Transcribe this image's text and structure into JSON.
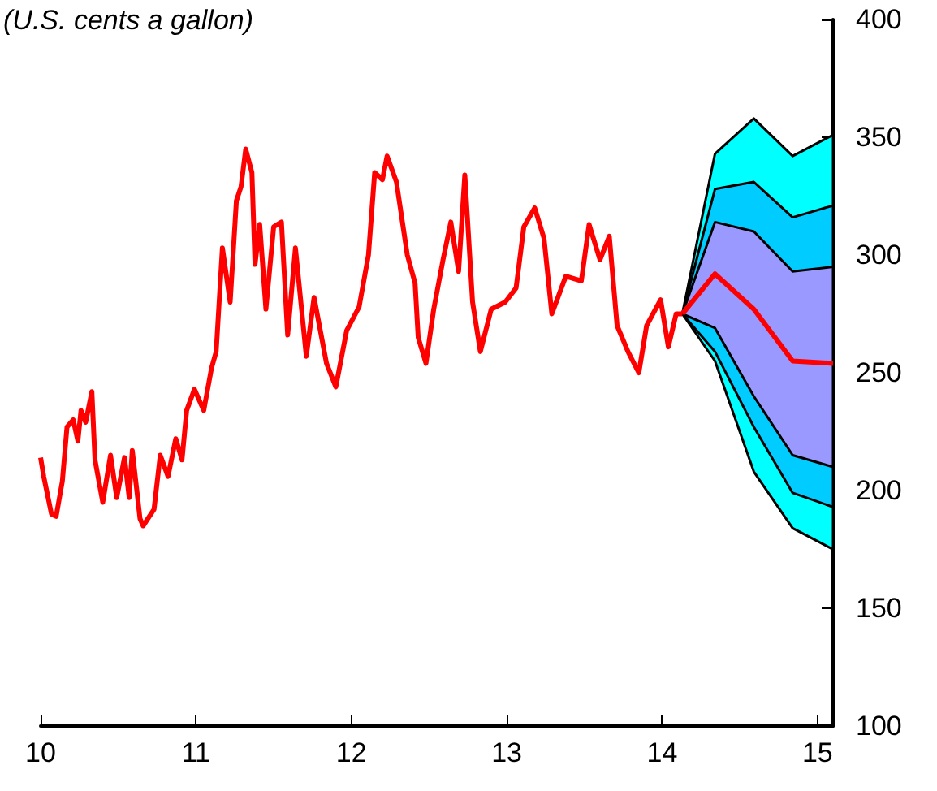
{
  "chart_data": {
    "type": "line",
    "ylabel": "(U.S. cents a gallon)",
    "xlim": [
      10,
      15.1
    ],
    "xticks": [
      10,
      11,
      12,
      13,
      14,
      15
    ],
    "ylim": [
      100,
      400
    ],
    "yticks": [
      100,
      150,
      200,
      250,
      300,
      350,
      400
    ],
    "marker": "none",
    "line_style": "solid",
    "series": [
      {
        "color": "#ff0000",
        "x": [
          10.0,
          10.02,
          10.07,
          10.1,
          10.14,
          10.17,
          10.21,
          10.24,
          10.26,
          10.29,
          10.33,
          10.35,
          10.4,
          10.45,
          10.49,
          10.54,
          10.57,
          10.59,
          10.64,
          10.66,
          10.73,
          10.77,
          10.82,
          10.87,
          10.91,
          10.94,
          10.99,
          11.05,
          11.1,
          11.13,
          11.17,
          11.22,
          11.26,
          11.29,
          11.32,
          11.36,
          11.38,
          11.41,
          11.45,
          11.5,
          11.55,
          11.59,
          11.64,
          11.71,
          11.76,
          11.84,
          11.9,
          11.97,
          12.05,
          12.11,
          12.15,
          12.2,
          12.23,
          12.29,
          12.36,
          12.41,
          12.43,
          12.48,
          12.53,
          12.59,
          12.64,
          12.69,
          12.73,
          12.78,
          12.83,
          12.9,
          12.99,
          13.06,
          13.11,
          13.18,
          13.24,
          13.29,
          13.38,
          13.48,
          13.53,
          13.6,
          13.66,
          13.71,
          13.78,
          13.85,
          13.9,
          13.99,
          14.04,
          14.09,
          14.13
        ],
        "values": [
          214,
          206,
          190,
          189,
          204,
          227,
          230,
          221,
          234,
          229,
          242,
          213,
          195,
          215,
          197,
          214,
          197,
          217,
          188,
          185,
          192,
          215,
          206,
          222,
          213,
          234,
          243,
          234,
          252,
          259,
          303,
          280,
          323,
          329,
          345,
          335,
          296,
          313,
          277,
          312,
          314,
          266,
          303,
          257,
          282,
          254,
          244,
          268,
          278,
          300,
          335,
          332,
          342,
          331,
          300,
          288,
          265,
          254,
          277,
          298,
          314,
          293,
          334,
          280,
          259,
          277,
          280,
          286,
          312,
          320,
          307,
          275,
          291,
          289,
          313,
          298,
          308,
          270,
          259,
          250,
          270,
          281,
          261,
          275,
          275
        ]
      },
      {
        "type": "area",
        "color": "#00ffff",
        "x": [
          14.13,
          14.34,
          14.59,
          14.84,
          15.1
        ],
        "values": [
          null,
          null,
          null,
          null,
          null
        ],
        "lower": [
          275,
          255,
          208,
          184,
          175
        ],
        "upper": [
          275,
          343,
          358,
          342,
          351
        ]
      },
      {
        "type": "area",
        "color": "#00ccff",
        "x": [
          14.13,
          14.34,
          14.59,
          14.84,
          15.1
        ],
        "values": [
          null,
          null,
          null,
          null,
          null
        ],
        "lower": [
          275,
          259,
          227,
          199,
          193
        ],
        "upper": [
          275,
          328,
          331,
          316,
          321
        ]
      },
      {
        "type": "area",
        "color": "#9999ff",
        "x": [
          14.13,
          14.34,
          14.59,
          14.84,
          15.1
        ],
        "values": [
          null,
          null,
          null,
          null,
          null
        ],
        "lower": [
          275,
          269,
          240,
          215,
          210
        ],
        "upper": [
          275,
          314,
          310,
          293,
          295
        ]
      },
      {
        "color": "#ff0000",
        "x": [
          14.13,
          14.34,
          14.59,
          14.84,
          15.1
        ],
        "values": [
          275,
          292,
          277,
          255,
          254
        ]
      }
    ]
  }
}
